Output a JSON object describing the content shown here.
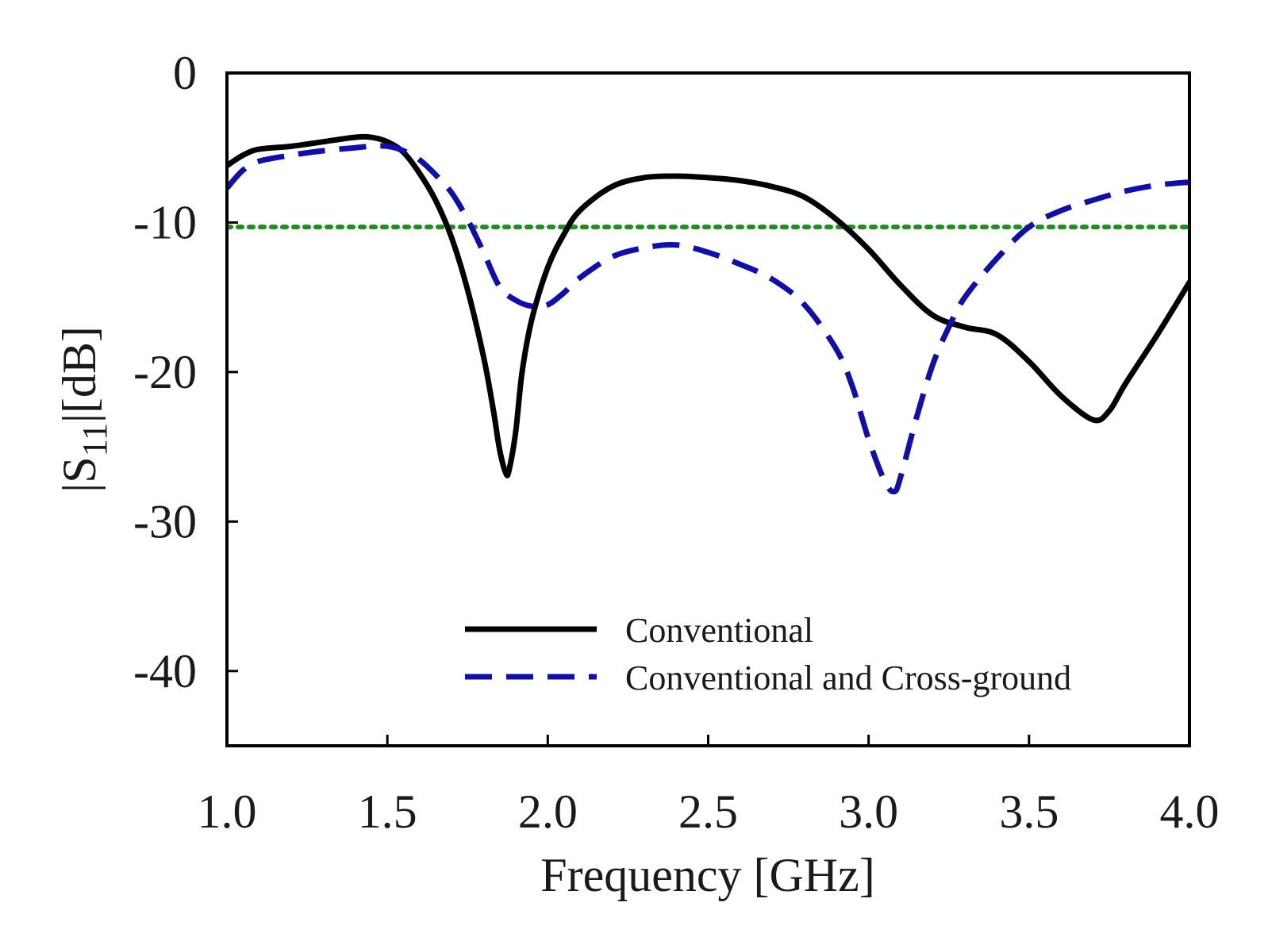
{
  "chart_data": {
    "type": "line",
    "title": "",
    "xlabel": "Frequency [GHz]",
    "ylabel_parts": {
      "left_bar": "|",
      "symbol": "S",
      "subscript": "11",
      "right_bar": "|",
      "unit": "[dB]"
    },
    "xlim": [
      1.0,
      4.0
    ],
    "ylim": [
      -45,
      0
    ],
    "xticks": [
      1.0,
      1.5,
      2.0,
      2.5,
      3.0,
      3.5,
      4.0
    ],
    "xtick_labels": [
      "1.0",
      "1.5",
      "2.0",
      "2.5",
      "3.0",
      "3.5",
      "4.0"
    ],
    "yticks": [
      0,
      -10,
      -20,
      -30,
      -40
    ],
    "ytick_labels": [
      "0",
      "-10",
      "-20",
      "-30",
      "-40"
    ],
    "grid": false,
    "legend_position": "lower-center",
    "reference_line": {
      "y": -10.3,
      "color": "#228B22",
      "style": "dotted"
    },
    "series": [
      {
        "name": "Conventional",
        "color": "#000000",
        "style": "solid",
        "x": [
          1.0,
          1.05,
          1.1,
          1.2,
          1.3,
          1.4,
          1.45,
          1.5,
          1.55,
          1.6,
          1.65,
          1.7,
          1.75,
          1.8,
          1.83,
          1.85,
          1.87,
          1.88,
          1.9,
          1.92,
          1.95,
          2.0,
          2.05,
          2.1,
          2.2,
          2.3,
          2.4,
          2.5,
          2.6,
          2.7,
          2.8,
          2.9,
          3.0,
          3.1,
          3.2,
          3.3,
          3.4,
          3.5,
          3.6,
          3.7,
          3.75,
          3.8,
          3.9,
          4.0
        ],
        "y": [
          -6.2,
          -5.5,
          -5.1,
          -4.9,
          -4.6,
          -4.3,
          -4.3,
          -4.6,
          -5.3,
          -6.7,
          -8.5,
          -11.0,
          -14.5,
          -19.0,
          -22.5,
          -25.2,
          -26.8,
          -26.5,
          -24.0,
          -20.0,
          -16.5,
          -13.0,
          -10.8,
          -9.2,
          -7.6,
          -7.0,
          -6.9,
          -7.0,
          -7.2,
          -7.6,
          -8.3,
          -9.8,
          -11.8,
          -14.2,
          -16.2,
          -17.0,
          -17.5,
          -19.3,
          -21.6,
          -23.2,
          -22.6,
          -20.8,
          -17.5,
          -14.0
        ]
      },
      {
        "name": "Conventional and Cross-ground",
        "color": "#1010A8",
        "style": "dashed",
        "x": [
          1.0,
          1.05,
          1.1,
          1.2,
          1.3,
          1.4,
          1.45,
          1.5,
          1.55,
          1.6,
          1.65,
          1.7,
          1.75,
          1.8,
          1.85,
          1.9,
          1.95,
          2.0,
          2.05,
          2.1,
          2.2,
          2.3,
          2.4,
          2.5,
          2.6,
          2.7,
          2.8,
          2.9,
          2.95,
          3.0,
          3.05,
          3.08,
          3.1,
          3.15,
          3.2,
          3.25,
          3.3,
          3.4,
          3.5,
          3.6,
          3.7,
          3.8,
          3.9,
          4.0
        ],
        "y": [
          -7.7,
          -6.5,
          -5.9,
          -5.5,
          -5.2,
          -5.0,
          -4.9,
          -4.9,
          -5.2,
          -5.8,
          -6.8,
          -8.0,
          -9.8,
          -12.0,
          -14.3,
          -15.2,
          -15.6,
          -15.5,
          -14.7,
          -13.7,
          -12.3,
          -11.7,
          -11.5,
          -12.0,
          -12.8,
          -13.8,
          -15.5,
          -18.5,
          -21.0,
          -24.5,
          -27.3,
          -28.0,
          -27.0,
          -23.0,
          -19.5,
          -17.0,
          -15.0,
          -12.4,
          -10.3,
          -9.2,
          -8.5,
          -7.9,
          -7.5,
          -7.3
        ]
      }
    ]
  }
}
